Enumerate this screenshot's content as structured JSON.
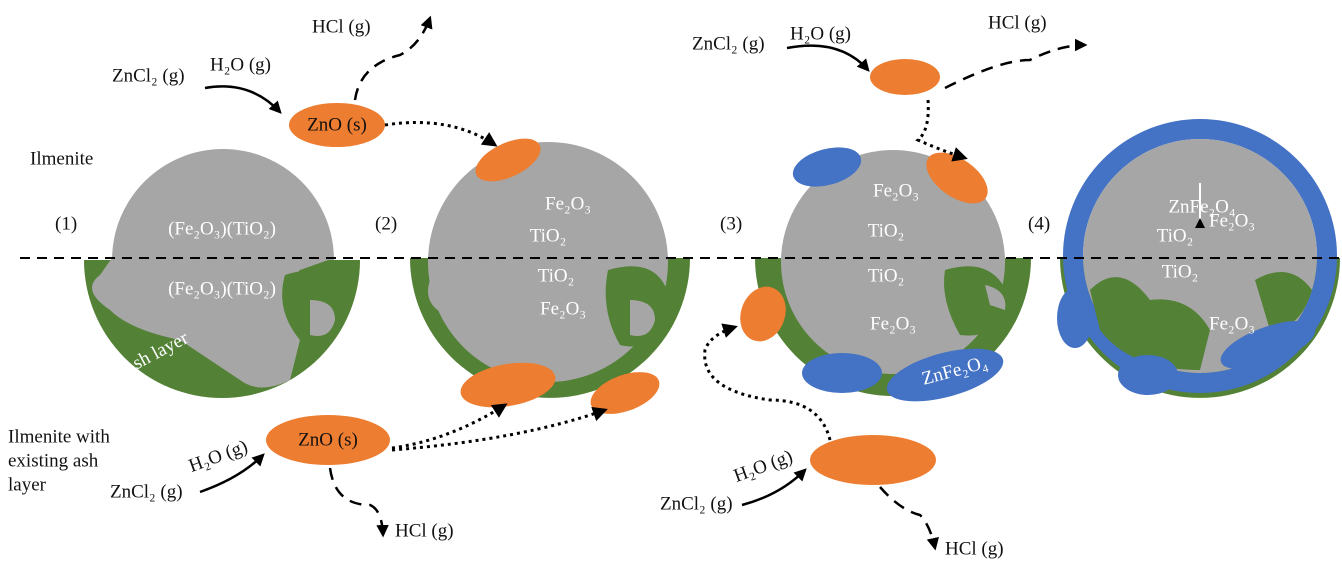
{
  "side_labels": {
    "ilmenite": "Ilmenite",
    "ilmenite_ash": [
      "Ilmenite with",
      "existing ash",
      "layer"
    ]
  },
  "steps": [
    "(1)",
    "(2)",
    "(3)",
    "(4)"
  ],
  "panel1": {
    "top": "(Fe₂O₃)(TiO₂)",
    "bottom": "(Fe₂O₃)(TiO₂)",
    "ash": "Ash layer"
  },
  "panel2": [
    "Fe₂O₃",
    "TiO₂",
    "TiO₂",
    "Fe₂O₃"
  ],
  "panel3": [
    "Fe₂O₃",
    "TiO₂",
    "TiO₂",
    "Fe₂O₃",
    "ZnFe₂O₄"
  ],
  "panel4": [
    "ZnFe₂O₄",
    "TiO₂",
    "Fe₂O₃",
    "TiO₂",
    "Fe₂O₃"
  ],
  "reactions": {
    "top_left": {
      "reactant": "ZnCl₂ (g)",
      "water": "H₂O (g)",
      "product": "ZnO (s)",
      "gas": "HCl (g)"
    },
    "bottom_left": {
      "reactant": "ZnCl₂ (g)",
      "water": "H₂O (g)",
      "product": "ZnO (s)",
      "gas": "HCl (g)"
    },
    "top_right": {
      "reactant": "ZnCl₂ (g)",
      "water": "H₂O (g)",
      "gas": "HCl (g)"
    },
    "bottom_right": {
      "reactant": "ZnCl₂ (g)",
      "water": "H₂O (g)",
      "gas": "HCl (g)"
    }
  }
}
